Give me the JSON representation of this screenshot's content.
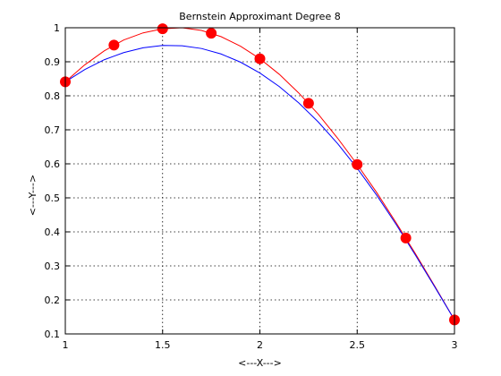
{
  "chart_data": {
    "type": "line",
    "title": "Bernstein Approximant Degree 8",
    "xlabel": "<---X--->",
    "ylabel": "<---Y--->",
    "xlim": [
      1,
      3
    ],
    "ylim": [
      0.1,
      1.0
    ],
    "xticks": [
      1,
      1.5,
      2,
      2.5,
      3
    ],
    "xtick_labels": [
      "1",
      "1.5",
      "2",
      "2.5",
      "3"
    ],
    "yticks": [
      0.1,
      0.2,
      0.3,
      0.4,
      0.5,
      0.6,
      0.7,
      0.8,
      0.9,
      1.0
    ],
    "ytick_labels": [
      "0.1",
      "0.2",
      "0.3",
      "0.4",
      "0.5",
      "0.6",
      "0.7",
      "0.8",
      "0.9",
      "1"
    ],
    "grid": true,
    "series": [
      {
        "kind": "line",
        "color": "#ff0000",
        "x": [
          1.0,
          1.1,
          1.2,
          1.3,
          1.4,
          1.5,
          1.6,
          1.7,
          1.8,
          1.9,
          2.0,
          2.1,
          2.2,
          2.3,
          2.4,
          2.5,
          2.6,
          2.7,
          2.8,
          2.9,
          3.0
        ],
        "values": [
          0.841,
          0.891,
          0.932,
          0.964,
          0.985,
          0.997,
          1.0,
          0.992,
          0.974,
          0.946,
          0.909,
          0.863,
          0.808,
          0.746,
          0.675,
          0.598,
          0.516,
          0.427,
          0.335,
          0.239,
          0.141
        ]
      },
      {
        "kind": "line",
        "color": "#0000ff",
        "x": [
          1.0,
          1.1,
          1.2,
          1.3,
          1.4,
          1.5,
          1.6,
          1.7,
          1.8,
          1.9,
          2.0,
          2.1,
          2.2,
          2.3,
          2.4,
          2.5,
          2.6,
          2.7,
          2.8,
          2.9,
          3.0
        ],
        "values": [
          0.841,
          0.877,
          0.906,
          0.927,
          0.941,
          0.948,
          0.947,
          0.939,
          0.923,
          0.899,
          0.867,
          0.827,
          0.779,
          0.723,
          0.659,
          0.587,
          0.508,
          0.422,
          0.331,
          0.237,
          0.141
        ]
      },
      {
        "kind": "scatter",
        "color": "#ff0000",
        "x": [
          1.0,
          1.25,
          1.5,
          1.75,
          2.0,
          2.25,
          2.5,
          2.75,
          3.0
        ],
        "values": [
          0.841,
          0.949,
          0.997,
          0.984,
          0.909,
          0.778,
          0.598,
          0.382,
          0.141
        ]
      }
    ]
  }
}
